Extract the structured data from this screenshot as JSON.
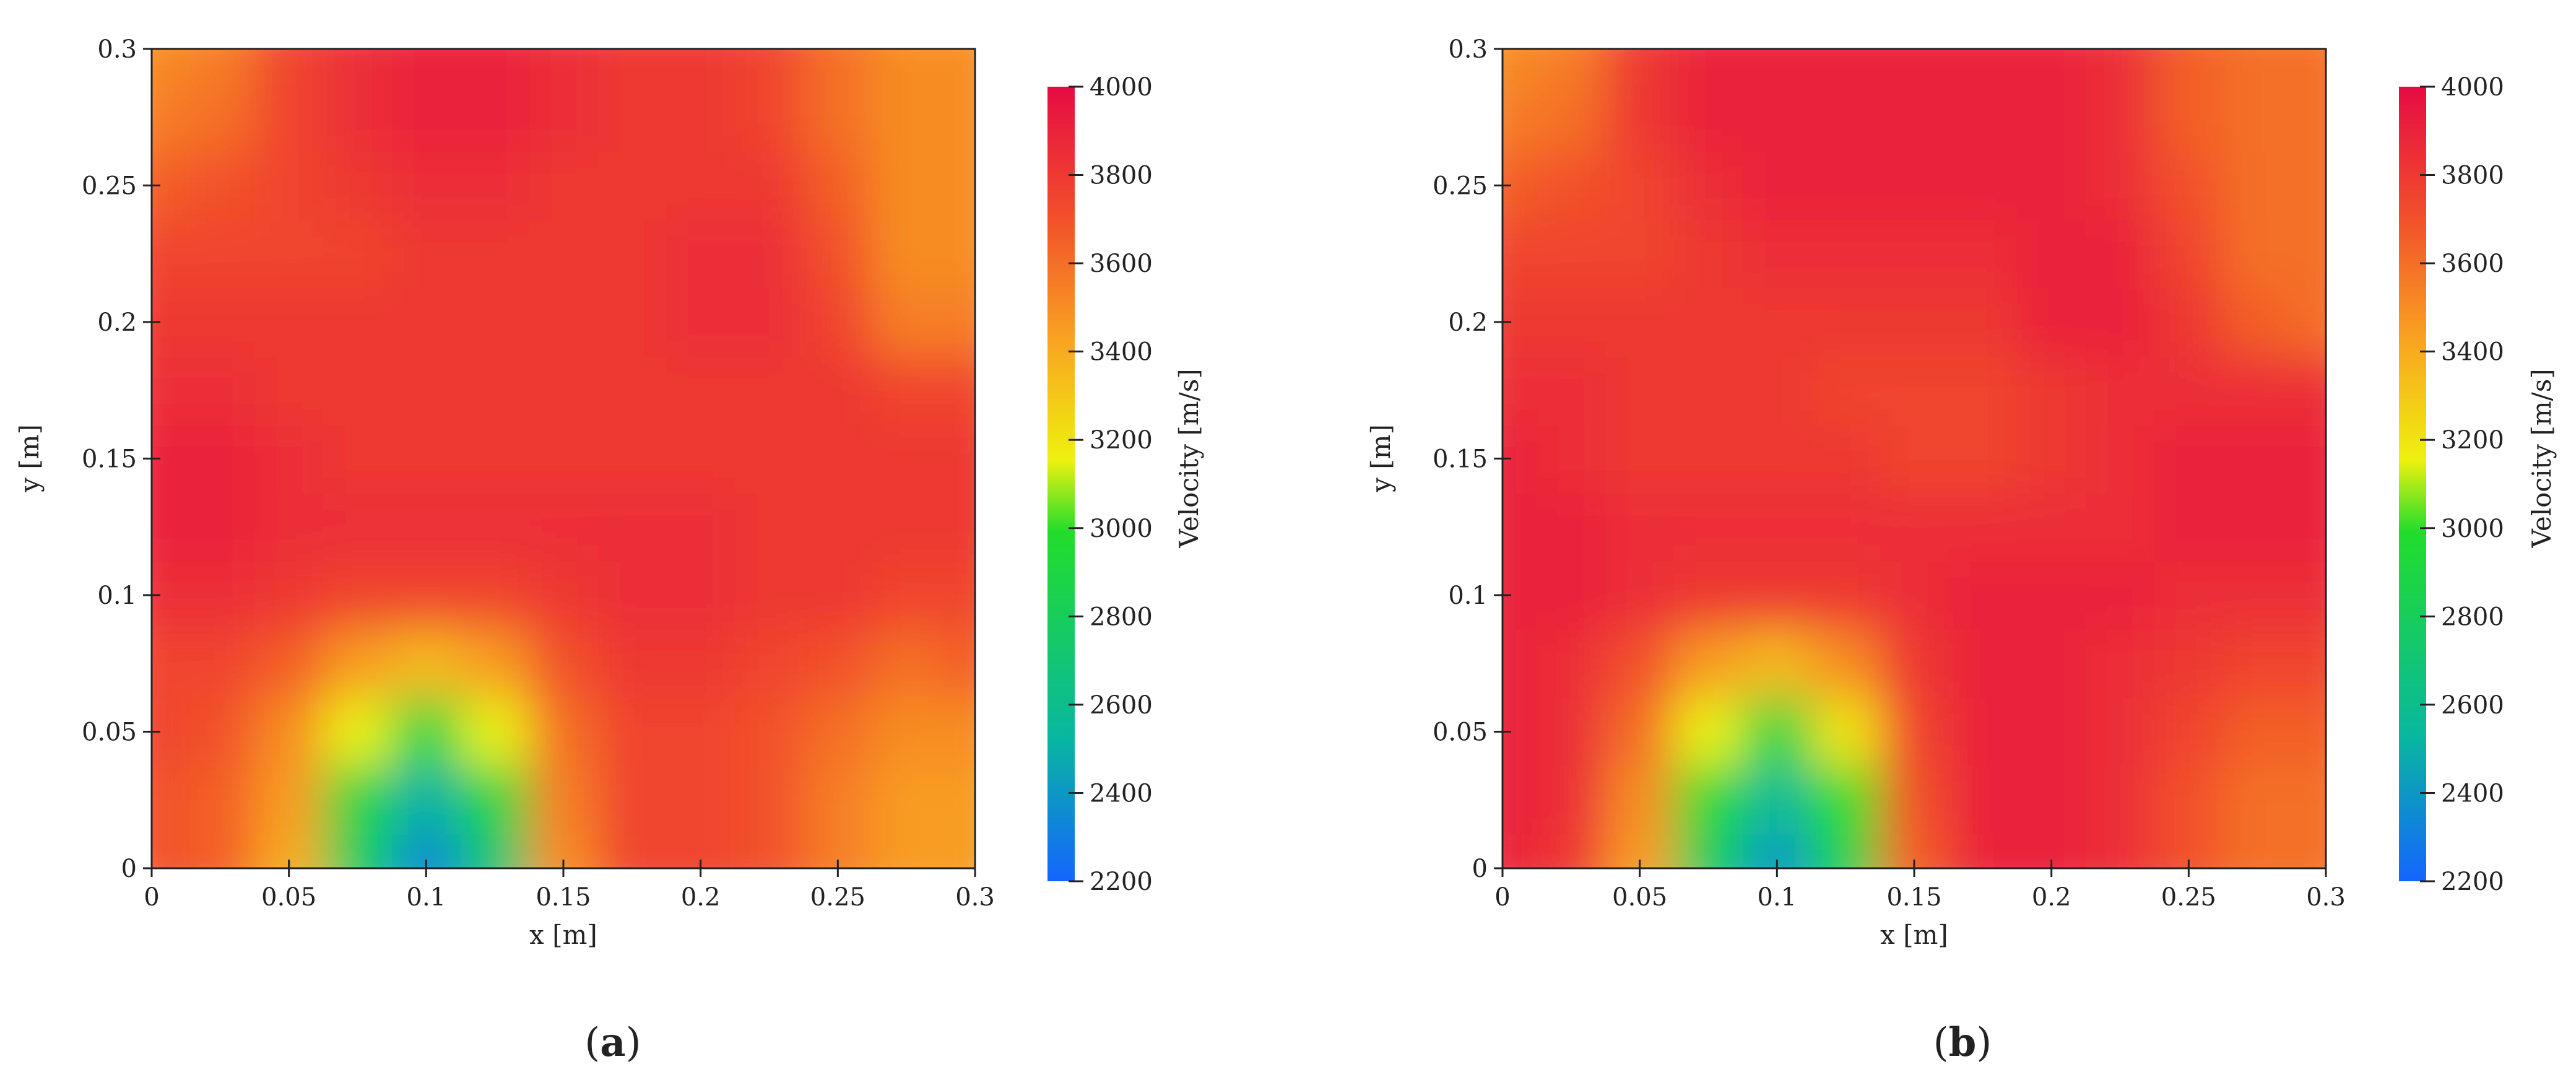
{
  "colors": {
    "colormap": [
      "#1565ff",
      "#08b7a0",
      "#22dd2b",
      "#eef10e",
      "#f9a420",
      "#f2522a",
      "#e60b43"
    ],
    "colormap_positions": [
      0,
      0.18,
      0.44,
      0.53,
      0.68,
      0.83,
      1
    ],
    "axis": "#222222",
    "background": "#ffffff"
  },
  "chart_data": [
    {
      "type": "heatmap",
      "panel_label": "a",
      "xlabel": "x [m]",
      "ylabel": "y [m]",
      "xlim": [
        0,
        0.3
      ],
      "ylim": [
        0,
        0.3
      ],
      "x_ticks": [
        "0",
        "0.05",
        "0.1",
        "0.15",
        "0.2",
        "0.25",
        "0.3"
      ],
      "y_ticks": [
        "0",
        "0.05",
        "0.1",
        "0.15",
        "0.2",
        "0.25",
        "0.3"
      ],
      "colorbar_label": "Velocity [m/s]",
      "colorbar_range": [
        2200,
        4000
      ],
      "colorbar_ticks": [
        "2200",
        "2400",
        "2600",
        "2800",
        "3000",
        "3200",
        "3400",
        "3600",
        "3800",
        "4000"
      ],
      "grid_x": [
        0,
        0.025,
        0.05,
        0.075,
        0.1,
        0.125,
        0.15,
        0.175,
        0.2,
        0.225,
        0.25,
        0.275,
        0.3
      ],
      "grid_y": [
        0,
        0.025,
        0.05,
        0.075,
        0.1,
        0.125,
        0.15,
        0.175,
        0.2,
        0.225,
        0.25,
        0.275,
        0.3
      ],
      "z": [
        [
          3700,
          3650,
          3400,
          2800,
          2350,
          2700,
          3500,
          3750,
          3750,
          3700,
          3550,
          3450,
          3450
        ],
        [
          3700,
          3650,
          3450,
          2900,
          2500,
          2900,
          3550,
          3750,
          3750,
          3700,
          3550,
          3450,
          3450
        ],
        [
          3750,
          3700,
          3500,
          3150,
          2900,
          3150,
          3600,
          3750,
          3750,
          3700,
          3600,
          3500,
          3500
        ],
        [
          3750,
          3750,
          3650,
          3450,
          3350,
          3450,
          3700,
          3800,
          3800,
          3750,
          3700,
          3600,
          3650
        ],
        [
          3850,
          3850,
          3800,
          3750,
          3750,
          3750,
          3800,
          3850,
          3850,
          3800,
          3800,
          3750,
          3750
        ],
        [
          3900,
          3900,
          3850,
          3850,
          3850,
          3850,
          3850,
          3850,
          3850,
          3800,
          3800,
          3800,
          3800
        ],
        [
          3900,
          3900,
          3850,
          3800,
          3800,
          3800,
          3800,
          3800,
          3800,
          3800,
          3800,
          3800,
          3800
        ],
        [
          3850,
          3850,
          3800,
          3800,
          3800,
          3800,
          3800,
          3800,
          3800,
          3800,
          3800,
          3750,
          3750
        ],
        [
          3800,
          3800,
          3800,
          3800,
          3800,
          3800,
          3800,
          3800,
          3850,
          3850,
          3750,
          3550,
          3550
        ],
        [
          3750,
          3750,
          3750,
          3750,
          3800,
          3800,
          3800,
          3800,
          3850,
          3850,
          3700,
          3500,
          3500
        ],
        [
          3650,
          3700,
          3750,
          3800,
          3850,
          3850,
          3800,
          3800,
          3800,
          3800,
          3650,
          3500,
          3500
        ],
        [
          3550,
          3600,
          3750,
          3850,
          3900,
          3900,
          3850,
          3800,
          3800,
          3750,
          3600,
          3500,
          3500
        ],
        [
          3500,
          3550,
          3750,
          3850,
          3900,
          3900,
          3850,
          3800,
          3800,
          3750,
          3600,
          3500,
          3500
        ]
      ]
    },
    {
      "type": "heatmap",
      "panel_label": "b",
      "xlabel": "x [m]",
      "ylabel": "y [m]",
      "xlim": [
        0,
        0.3
      ],
      "ylim": [
        0,
        0.3
      ],
      "x_ticks": [
        "0",
        "0.05",
        "0.1",
        "0.15",
        "0.2",
        "0.25",
        "0.3"
      ],
      "y_ticks": [
        "0",
        "0.05",
        "0.1",
        "0.15",
        "0.2",
        "0.25",
        "0.3"
      ],
      "colorbar_label": "Velocity [m/s]",
      "colorbar_range": [
        2200,
        4000
      ],
      "colorbar_ticks": [
        "2200",
        "2400",
        "2600",
        "2800",
        "3000",
        "3200",
        "3400",
        "3600",
        "3800",
        "4000"
      ],
      "grid_x": [
        0,
        0.025,
        0.05,
        0.075,
        0.1,
        0.125,
        0.15,
        0.175,
        0.2,
        0.225,
        0.25,
        0.275,
        0.3
      ],
      "grid_y": [
        0,
        0.025,
        0.05,
        0.075,
        0.1,
        0.125,
        0.15,
        0.175,
        0.2,
        0.225,
        0.25,
        0.275,
        0.3
      ],
      "z": [
        [
          3900,
          3800,
          3450,
          2800,
          2400,
          2850,
          3650,
          3900,
          3900,
          3850,
          3700,
          3600,
          3600
        ],
        [
          3900,
          3850,
          3500,
          2950,
          2550,
          3000,
          3700,
          3900,
          3900,
          3850,
          3700,
          3600,
          3600
        ],
        [
          3900,
          3850,
          3600,
          3150,
          2900,
          3200,
          3750,
          3900,
          3900,
          3850,
          3750,
          3650,
          3650
        ],
        [
          3900,
          3850,
          3700,
          3450,
          3350,
          3500,
          3800,
          3900,
          3900,
          3850,
          3800,
          3750,
          3750
        ],
        [
          3900,
          3900,
          3850,
          3800,
          3800,
          3800,
          3850,
          3900,
          3900,
          3900,
          3850,
          3850,
          3850
        ],
        [
          3900,
          3900,
          3850,
          3850,
          3850,
          3850,
          3850,
          3850,
          3850,
          3850,
          3900,
          3900,
          3900
        ],
        [
          3900,
          3850,
          3800,
          3800,
          3800,
          3800,
          3750,
          3750,
          3800,
          3850,
          3900,
          3900,
          3900
        ],
        [
          3850,
          3850,
          3800,
          3800,
          3800,
          3750,
          3750,
          3750,
          3800,
          3850,
          3850,
          3850,
          3850
        ],
        [
          3800,
          3800,
          3800,
          3800,
          3800,
          3800,
          3800,
          3800,
          3900,
          3900,
          3800,
          3650,
          3600
        ],
        [
          3750,
          3750,
          3750,
          3800,
          3850,
          3850,
          3850,
          3850,
          3900,
          3900,
          3750,
          3600,
          3600
        ],
        [
          3650,
          3700,
          3750,
          3850,
          3900,
          3900,
          3900,
          3900,
          3900,
          3850,
          3700,
          3600,
          3600
        ],
        [
          3550,
          3600,
          3800,
          3900,
          3900,
          3900,
          3900,
          3900,
          3900,
          3850,
          3650,
          3600,
          3600
        ],
        [
          3500,
          3550,
          3800,
          3900,
          3900,
          3900,
          3900,
          3900,
          3900,
          3850,
          3650,
          3600,
          3600
        ]
      ]
    }
  ]
}
